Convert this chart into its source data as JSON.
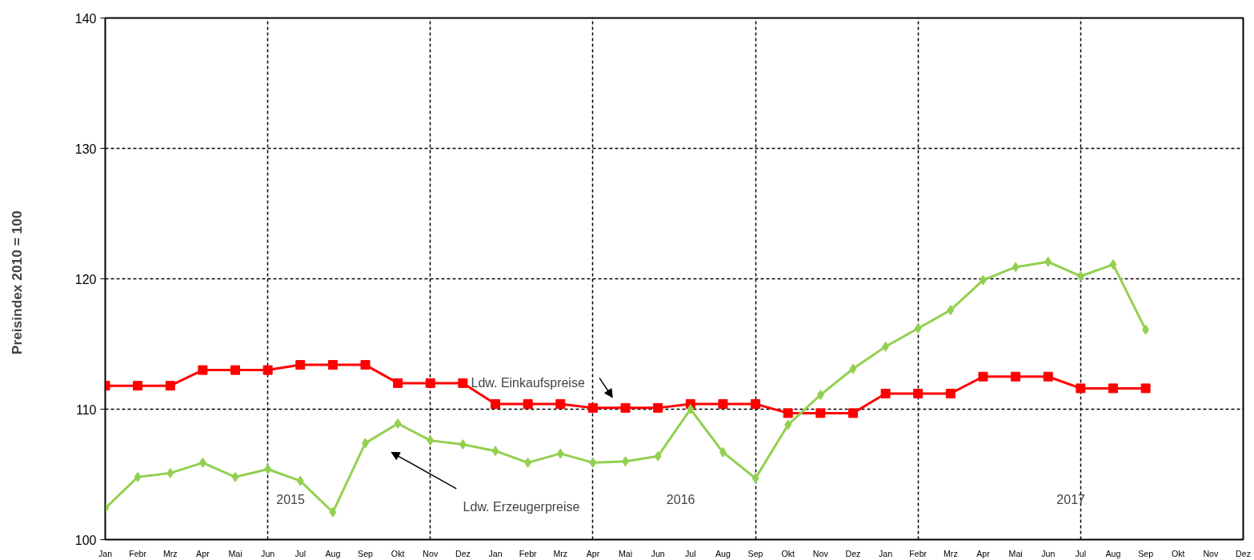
{
  "chart_data": {
    "type": "line",
    "ylabel": "Preisindex   2010 = 100",
    "categories": [
      "Jan",
      "Febr",
      "Mrz",
      "Apr",
      "Mai",
      "Jun",
      "Jul",
      "Aug",
      "Sep",
      "Okt",
      "Nov",
      "Dez",
      "Jan",
      "Febr",
      "Mrz",
      "Apr",
      "Mai",
      "Jun",
      "Jul",
      "Aug",
      "Sep",
      "Okt",
      "Nov",
      "Dez",
      "Jan",
      "Febr",
      "Mrz",
      "Apr",
      "Mai",
      "Jun",
      "Jul",
      "Aug",
      "Sep",
      "Okt",
      "Nov",
      "Dez"
    ],
    "series": [
      {
        "name": "Ldw. Einkaufspreise",
        "color": "#ff0000",
        "marker": "square",
        "values": [
          111.8,
          111.8,
          111.8,
          113.0,
          113.0,
          113.0,
          113.4,
          113.4,
          113.4,
          112.0,
          112.0,
          112.0,
          110.4,
          110.4,
          110.4,
          110.1,
          110.1,
          110.1,
          110.4,
          110.4,
          110.4,
          109.7,
          109.7,
          109.7,
          111.2,
          111.2,
          111.2,
          112.5,
          112.5,
          112.5,
          111.6,
          111.6,
          111.6,
          null,
          null,
          null
        ]
      },
      {
        "name": "Ldw. Erzeugerpreise",
        "color": "#92d050",
        "marker": "diamond",
        "values": [
          102.4,
          104.8,
          105.1,
          105.9,
          104.8,
          105.4,
          104.5,
          102.1,
          107.4,
          108.9,
          107.6,
          107.3,
          106.8,
          105.9,
          106.6,
          105.9,
          106.0,
          106.4,
          110.0,
          106.7,
          104.7,
          108.8,
          111.1,
          113.1,
          114.8,
          116.2,
          117.6,
          119.9,
          120.9,
          121.3,
          120.2,
          121.1,
          116.1,
          null,
          null,
          null
        ]
      }
    ],
    "ylim": [
      100,
      140
    ],
    "yticks": [
      100,
      110,
      120,
      130,
      140
    ],
    "grid": true,
    "line_style": "solid",
    "annotations": [
      "2015",
      "2016",
      "2017"
    ]
  }
}
